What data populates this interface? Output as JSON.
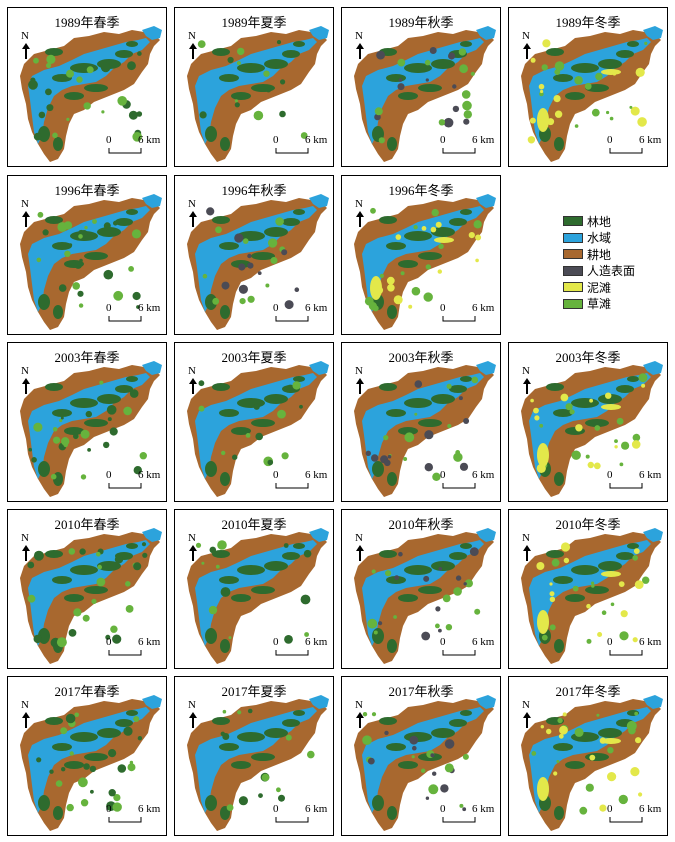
{
  "panels": [
    {
      "title": "1989年春季",
      "type": "spring"
    },
    {
      "title": "1989年夏季",
      "type": "summer"
    },
    {
      "title": "1989年秋季",
      "type": "autumn"
    },
    {
      "title": "1989年冬季",
      "type": "winter"
    },
    {
      "title": "1996年春季",
      "type": "spring"
    },
    {
      "title": "1996年秋季",
      "type": "autumn"
    },
    {
      "title": "1996年冬季",
      "type": "winter"
    },
    {
      "title": "2003年春季",
      "type": "spring"
    },
    {
      "title": "2003年夏季",
      "type": "summer"
    },
    {
      "title": "2003年秋季",
      "type": "autumn"
    },
    {
      "title": "2003年冬季",
      "type": "winter"
    },
    {
      "title": "2010年春季",
      "type": "spring"
    },
    {
      "title": "2010年夏季",
      "type": "summer"
    },
    {
      "title": "2010年秋季",
      "type": "autumn"
    },
    {
      "title": "2010年冬季",
      "type": "winter"
    },
    {
      "title": "2017年春季",
      "type": "spring"
    },
    {
      "title": "2017年夏季",
      "type": "summer"
    },
    {
      "title": "2017年秋季",
      "type": "autumn"
    },
    {
      "title": "2017年冬季",
      "type": "winter"
    }
  ],
  "north_label": "N",
  "scale": {
    "start": "0",
    "end": "6 km"
  },
  "legend": [
    {
      "label": "林地",
      "color": "#2e6b2e"
    },
    {
      "label": "水域",
      "color": "#2ca3dc"
    },
    {
      "label": "耕地",
      "color": "#a8682f"
    },
    {
      "label": "人造表面",
      "color": "#4b4b55"
    },
    {
      "label": "泥滩",
      "color": "#e3e84a"
    },
    {
      "label": "草滩",
      "color": "#66b33d"
    }
  ]
}
